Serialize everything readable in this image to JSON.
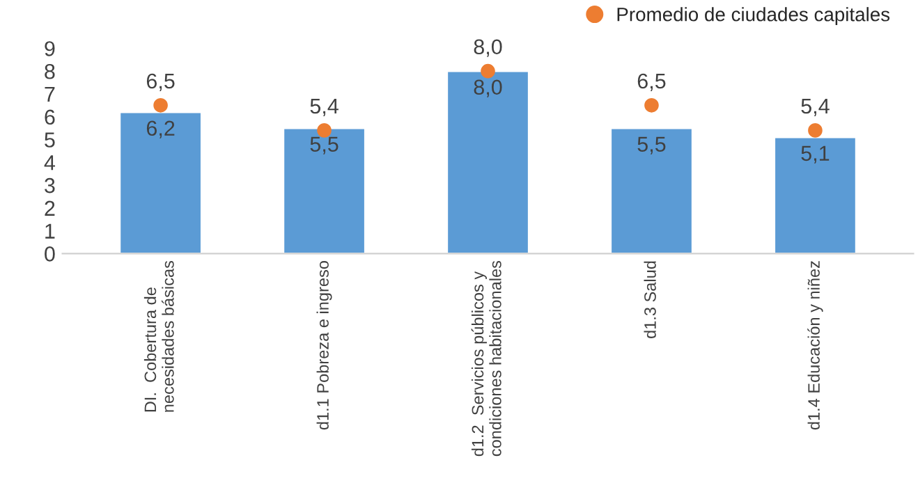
{
  "chart_data": {
    "type": "bar",
    "categories": [
      "DI.  Cobertura de\nnecesidades básicas",
      "d1.1 Pobreza e ingreso",
      "d1.2  Servicios públicos y\ncondiciones habitacionales",
      "d1.3 Salud",
      "d1.4 Educación y niñez"
    ],
    "series": [
      {
        "color": "#5b9bd5",
        "values": [
          6.2,
          5.5,
          8.0,
          5.5,
          5.1
        ],
        "value_labels": [
          "6,2",
          "5,5",
          "8,0",
          "5,5",
          "5,1"
        ]
      },
      {
        "type": "scatter",
        "name": "Promedio de ciudades capitales",
        "color": "#ed7d31",
        "values": [
          6.5,
          5.4,
          8.0,
          6.5,
          5.4
        ],
        "value_labels": [
          "6,5",
          "5,4",
          "8,0",
          "6,5",
          "5,4"
        ]
      }
    ],
    "ylim": [
      0,
      9
    ],
    "yticks": [
      0,
      1,
      2,
      3,
      4,
      5,
      6,
      7,
      8,
      9
    ],
    "grid": false,
    "legend": "top right",
    "marker": "circle"
  }
}
